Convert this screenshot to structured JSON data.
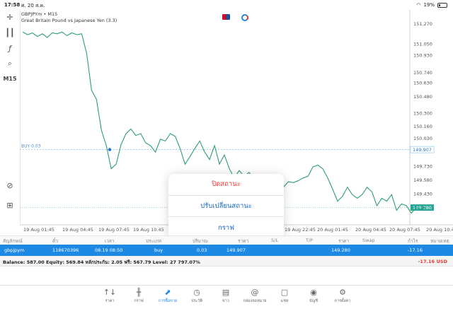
{
  "status_bar": {
    "time": "17:58",
    "date": "ศ. 20 ส.ค.",
    "battery": "19%"
  },
  "chart": {
    "symbol_line": "GBPJPYm • M15",
    "description": "Great Britain Pound vs Japanese Yen (3.3)",
    "timeframe": "M15",
    "buy_label": "BUY 0.03",
    "price_labels": [
      "151.270",
      "151.050",
      "150.930",
      "150.740",
      "150.630",
      "150.480",
      "150.300",
      "150.160",
      "150.030",
      "149.907",
      "149.730",
      "149.580",
      "149.430",
      "149.280"
    ],
    "current_price": "149.280",
    "open_price": "149.907",
    "time_labels": [
      "19 Aug 01:45",
      "19 Aug 04:45",
      "19 Aug 07:45",
      "19 Aug 10:45",
      "19 Aug 22:45",
      "20 Aug 01:45",
      "20 Aug 04:45",
      "20 Aug 07:45",
      "20 Aug 10:4"
    ],
    "series_prices": [
      151.18,
      151.15,
      151.17,
      151.13,
      151.16,
      151.12,
      151.17,
      151.16,
      151.18,
      151.14,
      151.17,
      151.15,
      151.16,
      150.95,
      150.55,
      150.45,
      150.12,
      149.95,
      149.7,
      149.75,
      149.96,
      150.08,
      150.13,
      150.06,
      150.08,
      149.98,
      149.95,
      149.88,
      150.02,
      150.0,
      150.08,
      150.05,
      149.92,
      149.75,
      149.83,
      149.92,
      150.0,
      149.88,
      149.8,
      149.95,
      149.75,
      149.85,
      149.7,
      149.6,
      149.68,
      149.62,
      149.66,
      149.6,
      149.52,
      149.58,
      149.56,
      149.52,
      149.55,
      149.5,
      149.56,
      149.55,
      149.57,
      149.6,
      149.62,
      149.72,
      149.74,
      149.7,
      149.6,
      149.48,
      149.35,
      149.4,
      149.5,
      149.42,
      149.38,
      149.42,
      149.5,
      149.45,
      149.3,
      149.38,
      149.35,
      149.42,
      149.25,
      149.32,
      149.3,
      149.22,
      149.28,
      149.26,
      149.28
    ],
    "colors": {
      "line": "#2e9e6e",
      "buy_line": "#7ec4ea",
      "price_tag": "#26a69a",
      "marker": "#1e6fd9"
    }
  },
  "popup": {
    "close": "ปิดสถานะ",
    "modify": "ปรับเปลี่ยนสถานะ",
    "chart": "กราฟ"
  },
  "table": {
    "headers": [
      "สัญลักษณ์",
      "ตั๋ว",
      "เวลา",
      "ประเภท",
      "ปริมาณ",
      "ราคา",
      "S/L",
      "T/P",
      "ราคา",
      "Swap",
      "กำไร",
      "หมายเหตุ"
    ],
    "row": {
      "symbol": "gbpjpym",
      "ticket": "118670396",
      "time": "08.19 08:50",
      "type": "buy",
      "volume": "0.03",
      "open_price": "149.907",
      "current_price": "149.280",
      "profit": "-17.16"
    }
  },
  "balance": {
    "text": "Balance: 587.00 Equity: 569.84 หลักประกัน: 2.05 ฟรี: 567.79 Level: 27 797.07%",
    "profit": "-17.16",
    "currency": "USD"
  },
  "nav": [
    {
      "label": "ราคา",
      "icon": "↑↓"
    },
    {
      "label": "กราฟ",
      "icon": "╫"
    },
    {
      "label": "การซื้อขาย",
      "icon": "⬈"
    },
    {
      "label": "ประวัติ",
      "icon": "◷"
    },
    {
      "label": "ข่าว",
      "icon": "▤"
    },
    {
      "label": "กล่องจดหมาย",
      "icon": "@"
    },
    {
      "label": "แชท",
      "icon": "▢"
    },
    {
      "label": "บัญชี",
      "icon": "◉"
    },
    {
      "label": "การตั้งค่า",
      "icon": "⚙"
    }
  ]
}
